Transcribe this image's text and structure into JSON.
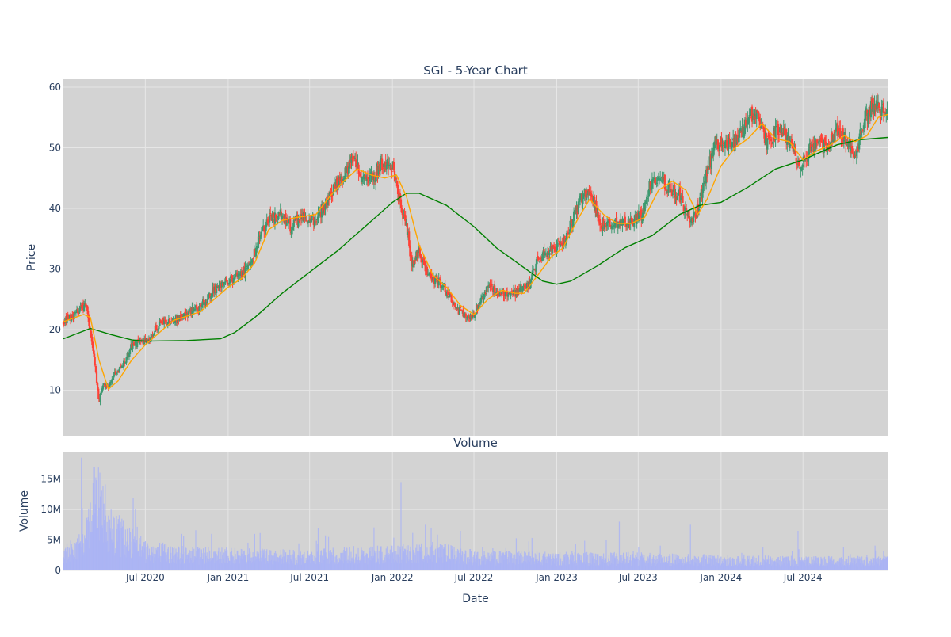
{
  "chart_data": [
    {
      "type": "candlestick",
      "title": "SGI - 5-Year Chart",
      "ylabel": "Price",
      "ylim": [
        2.5,
        61.3
      ],
      "yticks": [
        10,
        20,
        30,
        40,
        50,
        60
      ],
      "xlim": [
        "2020-01-01",
        "2025-01-05"
      ],
      "xticks": [
        {
          "date": "2020-07-01",
          "label": "Jul 2020"
        },
        {
          "date": "2021-01-01",
          "label": "Jan 2021"
        },
        {
          "date": "2021-07-01",
          "label": "Jul 2021"
        },
        {
          "date": "2022-01-01",
          "label": "Jan 2022"
        },
        {
          "date": "2022-07-01",
          "label": "Jul 2022"
        },
        {
          "date": "2023-01-01",
          "label": "Jan 2023"
        },
        {
          "date": "2023-07-01",
          "label": "Jul 2023"
        },
        {
          "date": "2024-01-01",
          "label": "Jan 2024"
        },
        {
          "date": "2024-07-01",
          "label": "Jul 2024"
        }
      ],
      "grid": true,
      "colors": {
        "increasing": "#3d9970",
        "decreasing": "#ff4136",
        "ma_short": "#ffa500",
        "ma_long": "#008000",
        "plot_bg": "#d3d3d3",
        "grid": "#e6e6e6"
      },
      "price_path": [
        {
          "date": "2020-01-01",
          "value": 21.5
        },
        {
          "date": "2020-01-20",
          "value": 22.0
        },
        {
          "date": "2020-02-10",
          "value": 23.5
        },
        {
          "date": "2020-02-20",
          "value": 24.2
        },
        {
          "date": "2020-03-01",
          "value": 20.0
        },
        {
          "date": "2020-03-10",
          "value": 15.0
        },
        {
          "date": "2020-03-20",
          "value": 8.0
        },
        {
          "date": "2020-03-28",
          "value": 11.0
        },
        {
          "date": "2020-04-10",
          "value": 10.5
        },
        {
          "date": "2020-04-25",
          "value": 13.0
        },
        {
          "date": "2020-05-15",
          "value": 14.5
        },
        {
          "date": "2020-06-01",
          "value": 17.5
        },
        {
          "date": "2020-06-20",
          "value": 18.0
        },
        {
          "date": "2020-07-10",
          "value": 18.5
        },
        {
          "date": "2020-08-01",
          "value": 21.0
        },
        {
          "date": "2020-09-01",
          "value": 21.5
        },
        {
          "date": "2020-10-01",
          "value": 22.5
        },
        {
          "date": "2020-11-01",
          "value": 24.0
        },
        {
          "date": "2020-12-01",
          "value": 26.5
        },
        {
          "date": "2021-01-01",
          "value": 28.0
        },
        {
          "date": "2021-02-01",
          "value": 29.0
        },
        {
          "date": "2021-03-01",
          "value": 33.0
        },
        {
          "date": "2021-04-01",
          "value": 38.5
        },
        {
          "date": "2021-05-01",
          "value": 39.0
        },
        {
          "date": "2021-05-20",
          "value": 37.0
        },
        {
          "date": "2021-06-15",
          "value": 39.0
        },
        {
          "date": "2021-07-15",
          "value": 38.0
        },
        {
          "date": "2021-08-20",
          "value": 43.0
        },
        {
          "date": "2021-09-20",
          "value": 46.0
        },
        {
          "date": "2021-10-05",
          "value": 49.0
        },
        {
          "date": "2021-10-25",
          "value": 45.0
        },
        {
          "date": "2021-11-20",
          "value": 45.5
        },
        {
          "date": "2021-12-10",
          "value": 47.5
        },
        {
          "date": "2022-01-01",
          "value": 47.0
        },
        {
          "date": "2022-01-20",
          "value": 40.0
        },
        {
          "date": "2022-02-01",
          "value": 37.5
        },
        {
          "date": "2022-02-12",
          "value": 31.0
        },
        {
          "date": "2022-03-01",
          "value": 33.0
        },
        {
          "date": "2022-03-20",
          "value": 29.0
        },
        {
          "date": "2022-04-20",
          "value": 27.5
        },
        {
          "date": "2022-05-20",
          "value": 24.0
        },
        {
          "date": "2022-06-10",
          "value": 22.0
        },
        {
          "date": "2022-07-01",
          "value": 22.5
        },
        {
          "date": "2022-08-01",
          "value": 27.0
        },
        {
          "date": "2022-09-01",
          "value": 26.0
        },
        {
          "date": "2022-10-01",
          "value": 26.0
        },
        {
          "date": "2022-11-01",
          "value": 27.5
        },
        {
          "date": "2022-11-20",
          "value": 32.0
        },
        {
          "date": "2022-12-20",
          "value": 33.0
        },
        {
          "date": "2023-01-15",
          "value": 34.0
        },
        {
          "date": "2023-02-10",
          "value": 39.0
        },
        {
          "date": "2023-03-01",
          "value": 42.5
        },
        {
          "date": "2023-03-20",
          "value": 42.0
        },
        {
          "date": "2023-04-10",
          "value": 37.0
        },
        {
          "date": "2023-05-15",
          "value": 37.5
        },
        {
          "date": "2023-06-15",
          "value": 38.0
        },
        {
          "date": "2023-07-10",
          "value": 39.0
        },
        {
          "date": "2023-08-01",
          "value": 45.0
        },
        {
          "date": "2023-09-01",
          "value": 44.0
        },
        {
          "date": "2023-10-01",
          "value": 42.0
        },
        {
          "date": "2023-10-25",
          "value": 37.5
        },
        {
          "date": "2023-11-10",
          "value": 40.0
        },
        {
          "date": "2023-12-01",
          "value": 46.0
        },
        {
          "date": "2023-12-20",
          "value": 51.0
        },
        {
          "date": "2024-01-15",
          "value": 50.5
        },
        {
          "date": "2024-02-10",
          "value": 51.5
        },
        {
          "date": "2024-03-01",
          "value": 55.0
        },
        {
          "date": "2024-03-20",
          "value": 56.0
        },
        {
          "date": "2024-04-10",
          "value": 51.0
        },
        {
          "date": "2024-05-10",
          "value": 53.0
        },
        {
          "date": "2024-06-01",
          "value": 51.0
        },
        {
          "date": "2024-06-25",
          "value": 47.0
        },
        {
          "date": "2024-07-20",
          "value": 50.5
        },
        {
          "date": "2024-08-15",
          "value": 50.0
        },
        {
          "date": "2024-09-15",
          "value": 53.0
        },
        {
          "date": "2024-10-05",
          "value": 51.5
        },
        {
          "date": "2024-10-25",
          "value": 48.5
        },
        {
          "date": "2024-11-15",
          "value": 55.0
        },
        {
          "date": "2024-12-05",
          "value": 57.0
        },
        {
          "date": "2025-01-05",
          "value": 55.5
        }
      ],
      "ma_short": [
        {
          "date": "2020-01-01",
          "value": 21.3
        },
        {
          "date": "2020-02-15",
          "value": 22.5
        },
        {
          "date": "2020-03-01",
          "value": 22.0
        },
        {
          "date": "2020-03-20",
          "value": 15.0
        },
        {
          "date": "2020-04-10",
          "value": 10.2
        },
        {
          "date": "2020-05-01",
          "value": 11.5
        },
        {
          "date": "2020-06-01",
          "value": 15.0
        },
        {
          "date": "2020-07-01",
          "value": 17.5
        },
        {
          "date": "2020-08-01",
          "value": 19.5
        },
        {
          "date": "2020-09-01",
          "value": 21.5
        },
        {
          "date": "2020-10-01",
          "value": 22.2
        },
        {
          "date": "2020-11-01",
          "value": 23.0
        },
        {
          "date": "2020-12-01",
          "value": 25.0
        },
        {
          "date": "2021-01-01",
          "value": 27.0
        },
        {
          "date": "2021-02-01",
          "value": 28.5
        },
        {
          "date": "2021-03-01",
          "value": 31.0
        },
        {
          "date": "2021-04-01",
          "value": 36.5
        },
        {
          "date": "2021-05-01",
          "value": 38.0
        },
        {
          "date": "2021-06-01",
          "value": 38.5
        },
        {
          "date": "2021-07-15",
          "value": 39.0
        },
        {
          "date": "2021-08-15",
          "value": 42.0
        },
        {
          "date": "2021-09-15",
          "value": 44.5
        },
        {
          "date": "2021-10-15",
          "value": 46.5
        },
        {
          "date": "2021-11-15",
          "value": 45.5
        },
        {
          "date": "2021-12-15",
          "value": 45.0
        },
        {
          "date": "2022-01-10",
          "value": 45.5
        },
        {
          "date": "2022-02-01",
          "value": 42.0
        },
        {
          "date": "2022-03-01",
          "value": 34.0
        },
        {
          "date": "2022-04-01",
          "value": 29.0
        },
        {
          "date": "2022-05-01",
          "value": 27.0
        },
        {
          "date": "2022-06-01",
          "value": 24.0
        },
        {
          "date": "2022-07-01",
          "value": 22.5
        },
        {
          "date": "2022-08-01",
          "value": 25.0
        },
        {
          "date": "2022-09-01",
          "value": 26.5
        },
        {
          "date": "2022-10-01",
          "value": 26.0
        },
        {
          "date": "2022-10-20",
          "value": 26.0
        },
        {
          "date": "2022-11-20",
          "value": 29.0
        },
        {
          "date": "2022-12-20",
          "value": 32.0
        },
        {
          "date": "2023-01-15",
          "value": 33.5
        },
        {
          "date": "2023-02-15",
          "value": 38.0
        },
        {
          "date": "2023-03-15",
          "value": 41.5
        },
        {
          "date": "2023-04-15",
          "value": 39.0
        },
        {
          "date": "2023-05-15",
          "value": 37.5
        },
        {
          "date": "2023-06-15",
          "value": 37.5
        },
        {
          "date": "2023-07-15",
          "value": 38.5
        },
        {
          "date": "2023-08-15",
          "value": 43.0
        },
        {
          "date": "2023-09-15",
          "value": 44.5
        },
        {
          "date": "2023-10-15",
          "value": 43.0
        },
        {
          "date": "2023-11-10",
          "value": 39.0
        },
        {
          "date": "2023-12-01",
          "value": 41.5
        },
        {
          "date": "2024-01-01",
          "value": 47.0
        },
        {
          "date": "2024-02-01",
          "value": 50.0
        },
        {
          "date": "2024-03-01",
          "value": 51.5
        },
        {
          "date": "2024-04-01",
          "value": 54.0
        },
        {
          "date": "2024-05-01",
          "value": 51.5
        },
        {
          "date": "2024-06-01",
          "value": 51.0
        },
        {
          "date": "2024-07-01",
          "value": 48.0
        },
        {
          "date": "2024-08-01",
          "value": 49.5
        },
        {
          "date": "2024-09-01",
          "value": 50.5
        },
        {
          "date": "2024-10-01",
          "value": 52.0
        },
        {
          "date": "2024-10-25",
          "value": 51.0
        },
        {
          "date": "2024-11-20",
          "value": 52.0
        },
        {
          "date": "2024-12-15",
          "value": 55.0
        },
        {
          "date": "2025-01-05",
          "value": 55.5
        }
      ],
      "ma_long": [
        {
          "date": "2020-01-01",
          "value": 18.5
        },
        {
          "date": "2020-03-01",
          "value": 20.2
        },
        {
          "date": "2020-04-15",
          "value": 19.2
        },
        {
          "date": "2020-06-01",
          "value": 18.3
        },
        {
          "date": "2020-07-01",
          "value": 18.1
        },
        {
          "date": "2020-10-01",
          "value": 18.2
        },
        {
          "date": "2020-12-15",
          "value": 18.5
        },
        {
          "date": "2021-01-15",
          "value": 19.5
        },
        {
          "date": "2021-03-01",
          "value": 22.0
        },
        {
          "date": "2021-05-01",
          "value": 26.0
        },
        {
          "date": "2021-07-01",
          "value": 29.5
        },
        {
          "date": "2021-09-01",
          "value": 33.0
        },
        {
          "date": "2021-11-01",
          "value": 37.0
        },
        {
          "date": "2022-01-01",
          "value": 41.0
        },
        {
          "date": "2022-02-01",
          "value": 42.5
        },
        {
          "date": "2022-03-01",
          "value": 42.5
        },
        {
          "date": "2022-05-01",
          "value": 40.5
        },
        {
          "date": "2022-07-01",
          "value": 37.0
        },
        {
          "date": "2022-08-20",
          "value": 33.5
        },
        {
          "date": "2022-10-15",
          "value": 30.5
        },
        {
          "date": "2022-12-01",
          "value": 28.0
        },
        {
          "date": "2023-01-01",
          "value": 27.5
        },
        {
          "date": "2023-02-01",
          "value": 28.0
        },
        {
          "date": "2023-04-01",
          "value": 30.5
        },
        {
          "date": "2023-06-01",
          "value": 33.5
        },
        {
          "date": "2023-08-01",
          "value": 35.5
        },
        {
          "date": "2023-10-01",
          "value": 39.0
        },
        {
          "date": "2023-11-15",
          "value": 40.5
        },
        {
          "date": "2024-01-01",
          "value": 41.0
        },
        {
          "date": "2024-03-01",
          "value": 43.5
        },
        {
          "date": "2024-05-01",
          "value": 46.5
        },
        {
          "date": "2024-07-01",
          "value": 48.0
        },
        {
          "date": "2024-09-15",
          "value": 50.5
        },
        {
          "date": "2024-11-01",
          "value": 51.3
        },
        {
          "date": "2025-01-05",
          "value": 51.7
        }
      ]
    },
    {
      "type": "bar",
      "title": "Volume",
      "ylabel": "Volume",
      "xlabel": "Date",
      "ylim": [
        0,
        19500000
      ],
      "yticks": [
        {
          "value": 0,
          "label": "0"
        },
        {
          "value": 5000000,
          "label": "5M"
        },
        {
          "value": 10000000,
          "label": "10M"
        },
        {
          "value": 15000000,
          "label": "15M"
        }
      ],
      "colors": {
        "bar": "#aab4f5"
      },
      "volume_profile": [
        {
          "date": "2020-01-01",
          "value": 2500000
        },
        {
          "date": "2020-02-15",
          "value": 4000000
        },
        {
          "date": "2020-03-01",
          "value": 7000000
        },
        {
          "date": "2020-03-12",
          "value": 12000000
        },
        {
          "date": "2020-03-25",
          "value": 9000000
        },
        {
          "date": "2020-04-15",
          "value": 6000000
        },
        {
          "date": "2020-05-15",
          "value": 5000000
        },
        {
          "date": "2020-07-01",
          "value": 3000000
        },
        {
          "date": "2020-09-01",
          "value": 2500000
        },
        {
          "date": "2021-01-01",
          "value": 2200000
        },
        {
          "date": "2021-06-01",
          "value": 2000000
        },
        {
          "date": "2022-01-01",
          "value": 2500000
        },
        {
          "date": "2022-04-01",
          "value": 2800000
        },
        {
          "date": "2022-07-01",
          "value": 2000000
        },
        {
          "date": "2023-01-01",
          "value": 1800000
        },
        {
          "date": "2023-06-01",
          "value": 1800000
        },
        {
          "date": "2024-01-01",
          "value": 1500000
        },
        {
          "date": "2024-07-01",
          "value": 1400000
        },
        {
          "date": "2025-01-05",
          "value": 1400000
        }
      ],
      "spikes": [
        {
          "date": "2020-02-10",
          "value": 18500000
        },
        {
          "date": "2020-03-10",
          "value": 17000000
        },
        {
          "date": "2020-03-14",
          "value": 14800000
        },
        {
          "date": "2020-02-28",
          "value": 8000000
        },
        {
          "date": "2020-04-10",
          "value": 9000000
        },
        {
          "date": "2020-06-10",
          "value": 7800000
        },
        {
          "date": "2020-09-20",
          "value": 6000000
        },
        {
          "date": "2020-11-25",
          "value": 6000000
        },
        {
          "date": "2021-03-01",
          "value": 6000000
        },
        {
          "date": "2021-07-20",
          "value": 7000000
        },
        {
          "date": "2022-01-20",
          "value": 14500000
        },
        {
          "date": "2022-03-15",
          "value": 7500000
        },
        {
          "date": "2022-06-01",
          "value": 6500000
        },
        {
          "date": "2023-05-20",
          "value": 8000000
        },
        {
          "date": "2023-10-25",
          "value": 7500000
        },
        {
          "date": "2024-06-20",
          "value": 6500000
        }
      ]
    }
  ]
}
